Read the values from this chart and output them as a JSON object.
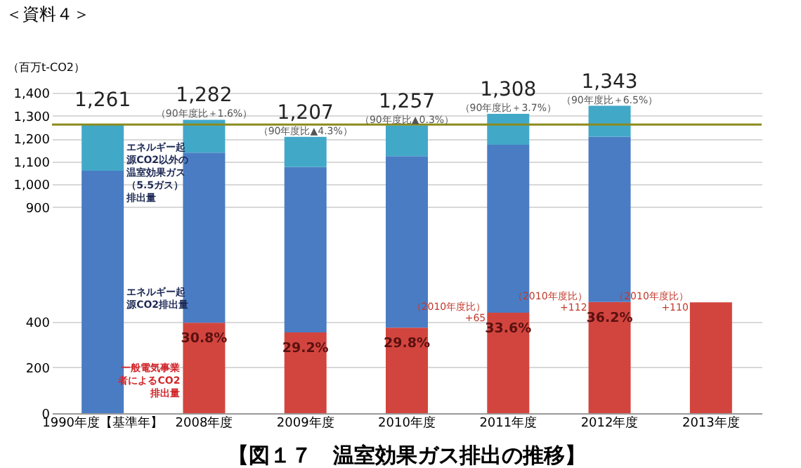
{
  "chart_data": {
    "type": "bar",
    "title": "【図１７　温室効果ガス排出の推移】",
    "ylabel": "（百万t-CO2）",
    "categories": [
      "1990年度【基準年】",
      "2008年度",
      "2009年度",
      "2010年度",
      "2011年度",
      "2012年度",
      "2013年度"
    ],
    "stacked": true,
    "series": [
      {
        "name": "一般電気事業者によるCO2排出量",
        "color": "#d2453e",
        "values": [
          null,
          395,
          353,
          374,
          439,
          486,
          484
        ]
      },
      {
        "name": "エネルギー起源CO2排出量",
        "color": "#4a7cc4",
        "values": [
          1059,
          743,
          722,
          749,
          734,
          721,
          null
        ]
      },
      {
        "name": "エネルギー起源CO2以外の温室効果ガス（5.5ガス）排出量",
        "color": "#42a8c8",
        "values": [
          202,
          144,
          132,
          134,
          135,
          136,
          null
        ]
      }
    ],
    "totals": [
      "1,261",
      "1,282",
      "1,207",
      "1,257",
      "1,308",
      "1,343",
      null
    ],
    "ylim": [
      0,
      1400
    ],
    "yticks": [
      0,
      200,
      400,
      {
        "value": 900,
        "label": "900"
      },
      {
        "value": 1000,
        "label": "1,000"
      },
      {
        "value": 1100,
        "label": "1,100"
      },
      {
        "value": 1200,
        "label": "1,200"
      },
      {
        "value": 1300,
        "label": "1,300"
      },
      {
        "value": 1400,
        "label": "1,400"
      }
    ],
    "grid": true,
    "ref_lines": [
      {
        "axis": "y",
        "value": 1261,
        "color": "#8b8b1e"
      }
    ],
    "annotations": [
      "＜資料４＞",
      {
        "text": "（90年度比＋1.6%）",
        "x": "2008年度",
        "y": 1282
      },
      {
        "text": "（90年度比▲4.3%）",
        "x": "2009年度",
        "y": 1207
      },
      {
        "text": "（90年度比▲0.3%）",
        "x": "2010年度",
        "y": 1257
      },
      {
        "text": "（90年度比＋3.7%）",
        "x": "2011年度",
        "y": 1308
      },
      {
        "text": "（90年度比＋6.5%）",
        "x": "2012年度",
        "y": 1343
      },
      {
        "text": "30.8%",
        "x": "2008年度",
        "y": 395
      },
      {
        "text": "29.2%",
        "x": "2009年度",
        "y": 353
      },
      {
        "text": "29.8%",
        "x": "2010年度",
        "y": 374
      },
      {
        "text": "33.6%",
        "x": "2011年度",
        "y": 439
      },
      {
        "text": "36.2%",
        "x": "2012年度",
        "y": 486
      },
      {
        "text": "（2010年度比）+65",
        "x": "2011年度",
        "y": 439
      },
      {
        "text": "（2010年度比）+112",
        "x": "2012年度",
        "y": 486
      },
      {
        "text": "（2010年度比）+110",
        "x": "2013年度",
        "y": 484
      }
    ]
  }
}
